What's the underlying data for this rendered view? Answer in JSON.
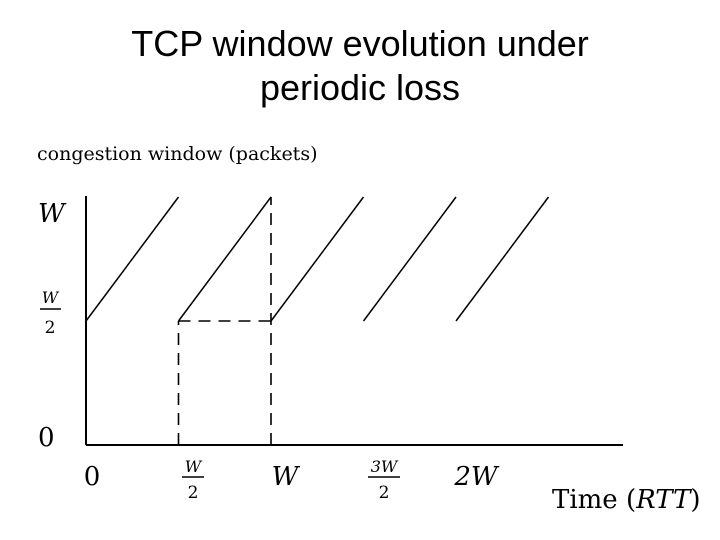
{
  "slide": {
    "title_line1": "TCP window evolution under",
    "title_line2": "periodic loss"
  },
  "figure": {
    "ylabel": "congestion window (packets)",
    "xlabel_prefix": "Time",
    "xlabel_unit": "RTT",
    "y_ticks": {
      "top": "W",
      "mid_num": "W",
      "mid_den": "2",
      "zero": "0"
    },
    "x_ticks": {
      "t0": "0",
      "t1_num": "W",
      "t1_den": "2",
      "t2": "W",
      "t3_num": "3W",
      "t3_den": "2",
      "t4": "2W"
    }
  },
  "chart_data": {
    "type": "line",
    "ylabel": "congestion window (packets)",
    "xlabel": "Time (RTT)",
    "x_ticks": [
      "0",
      "W/2",
      "W",
      "3W/2",
      "2W"
    ],
    "y_ticks": [
      "0",
      "W/2",
      "W"
    ],
    "series": [
      {
        "segments": [
          [
            [
              0,
              0.5
            ],
            [
              0.5,
              1
            ]
          ],
          [
            [
              0.5,
              0.5
            ],
            [
              1,
              1
            ]
          ],
          [
            [
              1,
              0.5
            ],
            [
              1.5,
              1
            ]
          ],
          [
            [
              1.5,
              0.5
            ],
            [
              2,
              1
            ]
          ],
          [
            [
              2,
              0.5
            ],
            [
              2.5,
              1
            ]
          ]
        ]
      }
    ],
    "guides": [
      [
        [
          0.5,
          0
        ],
        [
          0.5,
          0.5
        ]
      ],
      [
        [
          0.5,
          0.5
        ],
        [
          1,
          0.5
        ]
      ],
      [
        [
          1,
          0
        ],
        [
          1,
          1
        ]
      ]
    ]
  }
}
